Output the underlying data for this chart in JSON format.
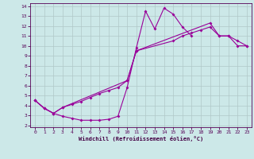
{
  "xlabel": "Windchill (Refroidissement éolien,°C)",
  "bg_color": "#cce8e8",
  "grid_color": "#b0c8c8",
  "line_color": "#990099",
  "xlim": [
    -0.5,
    23.5
  ],
  "ylim": [
    1.8,
    14.3
  ],
  "xticks": [
    0,
    1,
    2,
    3,
    4,
    5,
    6,
    7,
    8,
    9,
    10,
    11,
    12,
    13,
    14,
    15,
    16,
    17,
    18,
    19,
    20,
    21,
    22,
    23
  ],
  "yticks": [
    2,
    3,
    4,
    5,
    6,
    7,
    8,
    9,
    10,
    11,
    12,
    13,
    14
  ],
  "curve1_x": [
    0,
    1,
    2,
    3,
    4,
    5,
    6,
    7,
    8,
    9,
    10,
    11,
    12,
    13,
    14,
    15,
    16,
    17
  ],
  "curve1_y": [
    4.5,
    3.7,
    3.2,
    2.9,
    2.7,
    2.5,
    2.5,
    2.5,
    2.6,
    2.9,
    5.8,
    9.8,
    13.5,
    11.7,
    13.8,
    13.2,
    11.9,
    11.0
  ],
  "curve2_x": [
    0,
    1,
    2,
    3,
    4,
    5,
    6,
    7,
    8,
    9,
    10,
    11,
    19,
    20,
    21,
    22,
    23
  ],
  "curve2_y": [
    4.5,
    3.7,
    3.2,
    3.8,
    4.1,
    4.4,
    4.8,
    5.2,
    5.5,
    5.8,
    6.5,
    9.5,
    12.3,
    11.0,
    11.0,
    10.5,
    10.0
  ],
  "curve3_x": [
    0,
    1,
    2,
    3,
    10,
    11,
    15,
    16,
    17,
    18,
    19,
    20,
    21,
    22,
    23
  ],
  "curve3_y": [
    4.5,
    3.7,
    3.2,
    3.8,
    6.5,
    9.5,
    10.5,
    11.0,
    11.3,
    11.6,
    11.9,
    11.0,
    11.0,
    10.0,
    10.0
  ]
}
